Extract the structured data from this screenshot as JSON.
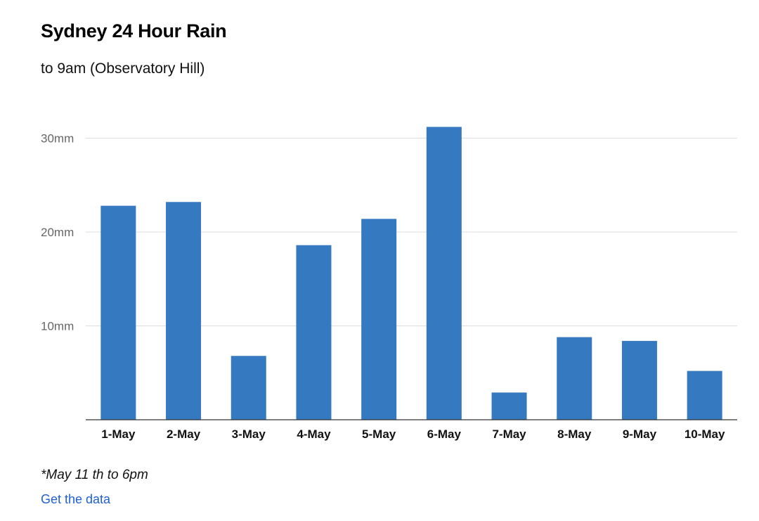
{
  "chart_data": {
    "type": "bar",
    "title": "Sydney 24 Hour Rain",
    "subtitle": "to 9am (Observatory Hill)",
    "xlabel": "",
    "ylabel": "",
    "categories": [
      "1-May",
      "2-May",
      "3-May",
      "4-May",
      "5-May",
      "6-May",
      "7-May",
      "8-May",
      "9-May",
      "10-May"
    ],
    "values": [
      22.8,
      23.2,
      6.8,
      18.6,
      21.4,
      31.2,
      2.9,
      8.8,
      8.4,
      5.2
    ],
    "ylim": [
      0,
      33
    ],
    "yticks": [
      10,
      20,
      30
    ],
    "ytick_labels": [
      "10mm",
      "20mm",
      "30mm"
    ],
    "grid": true,
    "bar_color": "#3579c0",
    "gridline_color": "#dddddd",
    "axis_color": "#333333"
  },
  "footnote": "*May 11 th to 6pm",
  "link": {
    "label": "Get the data",
    "color": "#1f5fd6"
  }
}
